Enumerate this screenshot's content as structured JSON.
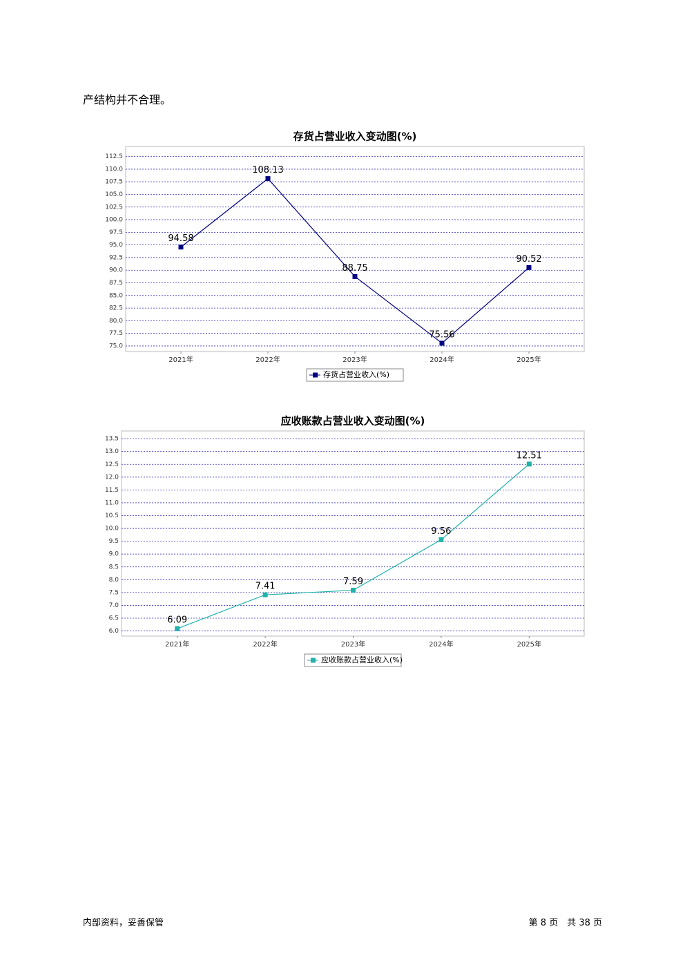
{
  "body_text": "产结构并不合理。",
  "chart_data": [
    {
      "type": "line",
      "title": "存货占营业收入变动图(%)",
      "categories": [
        "2021年",
        "2022年",
        "2023年",
        "2024年",
        "2025年"
      ],
      "series": [
        {
          "name": "存货占营业收入(%)",
          "color": "#000080",
          "values": [
            94.58,
            108.13,
            88.75,
            75.56,
            90.52
          ]
        }
      ],
      "ylim": [
        73.9,
        114.5
      ],
      "yticks": [
        {
          "value": 75,
          "label": "75.0"
        },
        77.5,
        {
          "value": 80,
          "label": "80.0"
        },
        82.5,
        {
          "value": 85,
          "label": "85.0"
        },
        87.5,
        {
          "value": 90,
          "label": "90.0"
        },
        92.5,
        {
          "value": 95,
          "label": "95.0"
        },
        97.5,
        {
          "value": 100,
          "label": "100.0"
        },
        102.5,
        {
          "value": 105,
          "label": "105.0"
        },
        107.5,
        {
          "value": 110,
          "label": "110.0"
        },
        112.5
      ],
      "grid": true
    },
    {
      "type": "line",
      "title": "应收账款占营业收入变动图(%)",
      "categories": [
        "2021年",
        "2022年",
        "2023年",
        "2024年",
        "2025年"
      ],
      "series": [
        {
          "name": "应收账款占营业收入(%)",
          "color": "#20b2aa",
          "values": [
            6.09,
            7.41,
            7.59,
            9.56,
            12.51
          ]
        }
      ],
      "ylim": [
        5.8,
        13.8
      ],
      "yticks": [
        {
          "value": 6,
          "label": "6.0"
        },
        6.5,
        {
          "value": 7,
          "label": "7.0"
        },
        7.5,
        {
          "value": 8,
          "label": "8.0"
        },
        8.5,
        {
          "value": 9,
          "label": "9.0"
        },
        9.5,
        {
          "value": 10,
          "label": "10.0"
        },
        10.5,
        {
          "value": 11,
          "label": "11.0"
        },
        11.5,
        {
          "value": 12,
          "label": "12.0"
        },
        12.5,
        {
          "value": 13,
          "label": "13.0"
        },
        13.5
      ],
      "grid": true
    }
  ],
  "footer": {
    "left": "内部资料，妥善保管",
    "right": "第 8 页　共 38 页"
  }
}
